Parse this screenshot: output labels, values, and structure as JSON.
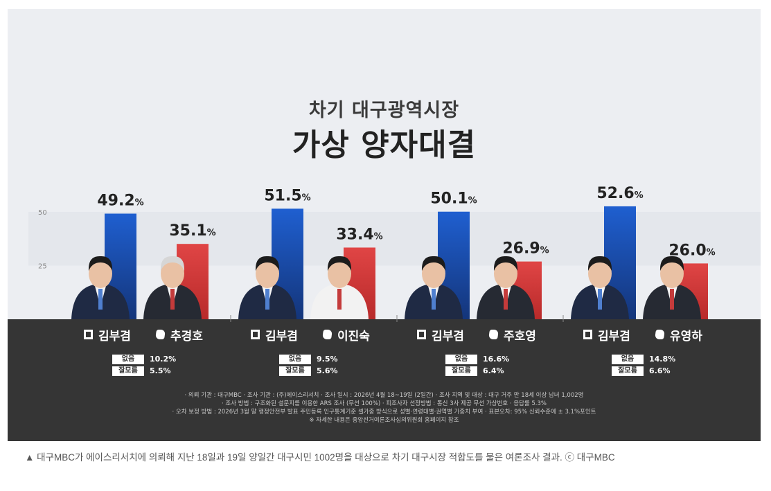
{
  "title": {
    "subtitle": "차기 대구광역시장",
    "main": "가상 양자대결"
  },
  "chart_data": {
    "type": "bar",
    "ylim": [
      0,
      60
    ],
    "yticks": [
      25,
      50
    ],
    "grid": false,
    "matchups": [
      {
        "candidates": [
          {
            "name": "김부겸",
            "party": "dem",
            "value": 49.2,
            "label": "49.2",
            "color": "#1d4fa8"
          },
          {
            "name": "추경호",
            "party": "ppp",
            "value": 35.1,
            "label": "35.1",
            "color": "#d63a3a"
          }
        ],
        "none_label": "없음",
        "none_value": "10.2%",
        "dk_label": "잘모름",
        "dk_value": "5.5%"
      },
      {
        "candidates": [
          {
            "name": "김부겸",
            "party": "dem",
            "value": 51.5,
            "label": "51.5",
            "color": "#1d4fa8"
          },
          {
            "name": "이진숙",
            "party": "ppp",
            "value": 33.4,
            "label": "33.4",
            "color": "#d63a3a"
          }
        ],
        "none_label": "없음",
        "none_value": "9.5%",
        "dk_label": "잘모름",
        "dk_value": "5.6%"
      },
      {
        "candidates": [
          {
            "name": "김부겸",
            "party": "dem",
            "value": 50.1,
            "label": "50.1",
            "color": "#1d4fa8"
          },
          {
            "name": "주호영",
            "party": "ppp",
            "value": 26.9,
            "label": "26.9",
            "color": "#d63a3a"
          }
        ],
        "none_label": "없음",
        "none_value": "16.6%",
        "dk_label": "잘모름",
        "dk_value": "6.4%"
      },
      {
        "candidates": [
          {
            "name": "김부겸",
            "party": "dem",
            "value": 52.6,
            "label": "52.6",
            "color": "#1d4fa8"
          },
          {
            "name": "유영하",
            "party": "ppp",
            "value": 26.0,
            "label": "26.0",
            "color": "#d63a3a"
          }
        ],
        "none_label": "없음",
        "none_value": "14.8%",
        "dk_label": "잘모름",
        "dk_value": "6.6%"
      }
    ],
    "unit": "%"
  },
  "notes": {
    "line1": "· 의뢰 기관 : 대구MBC  · 조사 기관 : (주)에이스리서치  · 조사 일시 : 2026년 4월 18~19일 (2일간)  · 조사 지역 및 대상 : 대구 거주 만 18세 이상 남녀 1,002명",
    "line2": "· 조사 방법 : 구조화된 설문지를 이용한 ARS 조사 (무선 100%)  · 피조사자 선정방법 : 통신 3사 제공 무선 가상번호  · 응답률 5.3%",
    "line3": "· 오차 보정 방법 : 2026년 3월 말 행정안전부 발표 주민등록 인구통계기준 셀가중 방식으로 성별·연령대별·권역별 가중치 부여  · 표본오차: 95% 신뢰수준에 ± 3.1%포인트",
    "line4": "※ 자세한 내용은 중앙선거여론조사심의위원회 홈페이지 참조"
  },
  "caption": "▲ 대구MBC가 에이스리서치에 의뢰해 지난 18일과 19일 양일간 대구시민 1002명을 대상으로 차기 대구시장 적합도를 물은 여론조사 결과. ⓒ 대구MBC",
  "icons": {
    "dem_party": "square-party-icon",
    "ppp_party": "leaf-party-icon",
    "person": "person-photo-icon"
  }
}
